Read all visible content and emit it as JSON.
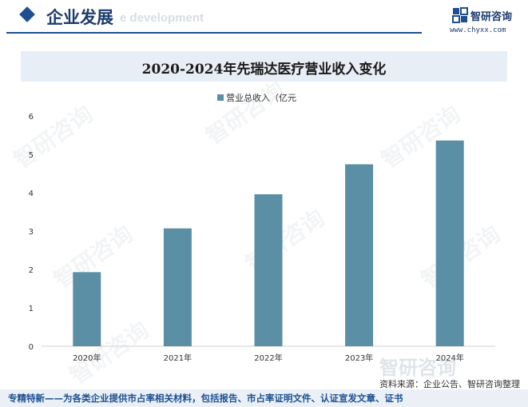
{
  "header": {
    "title": "企业发展",
    "subtitle_en": "e development"
  },
  "brand": {
    "name": "智研咨询",
    "url": "www.chyxx.com"
  },
  "watermark": "智研咨询",
  "chart_data": {
    "type": "bar",
    "title": "2020-2024年先瑞达医疗营业收入变化",
    "categories": [
      "2020年",
      "2021年",
      "2022年",
      "2023年",
      "2024年"
    ],
    "series": [
      {
        "name": "营业总收入（亿元",
        "values": [
          1.93,
          3.07,
          3.96,
          4.74,
          5.36
        ]
      }
    ],
    "ylim": [
      0,
      6
    ],
    "yticks": [
      0,
      1,
      2,
      3,
      4,
      5,
      6
    ],
    "grid": false,
    "legend": "top-center",
    "colors": {
      "bar": "#5b8fa6"
    }
  },
  "source": "资料来源：企业公告、智研咨询整理",
  "footer": "专精特新——为各类企业提供市占率相关材料，包括报告、市占率证明文件、认证宣发文章、证书"
}
